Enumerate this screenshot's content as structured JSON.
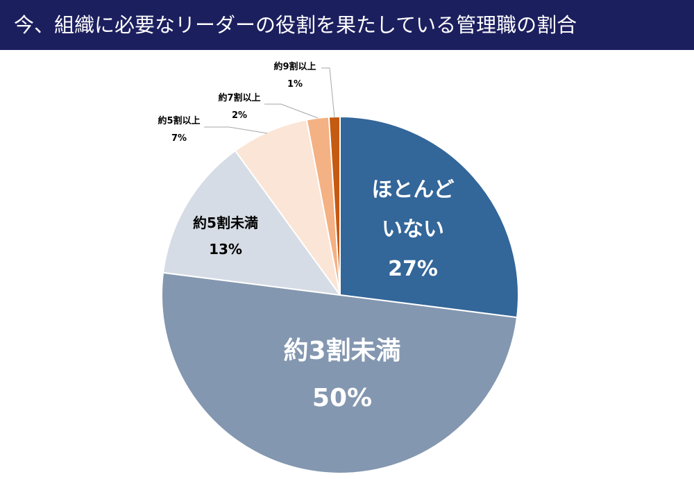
{
  "chart_data": {
    "type": "pie",
    "title": "今、組織に必要なリーダーの役割を果たしている管理職の割合",
    "categories": [
      "ほとんどいない",
      "約3割未満",
      "約5割未満",
      "約5割以上",
      "約7割以上",
      "約9割以上"
    ],
    "values": [
      27,
      50,
      13,
      7,
      2,
      1
    ],
    "value_labels": [
      "27%",
      "50%",
      "13%",
      "7%",
      "2%",
      "1%"
    ],
    "colors": [
      "#336699",
      "#8497b0",
      "#d6dce5",
      "#fbe5d6",
      "#f4b183",
      "#c55a11"
    ]
  }
}
